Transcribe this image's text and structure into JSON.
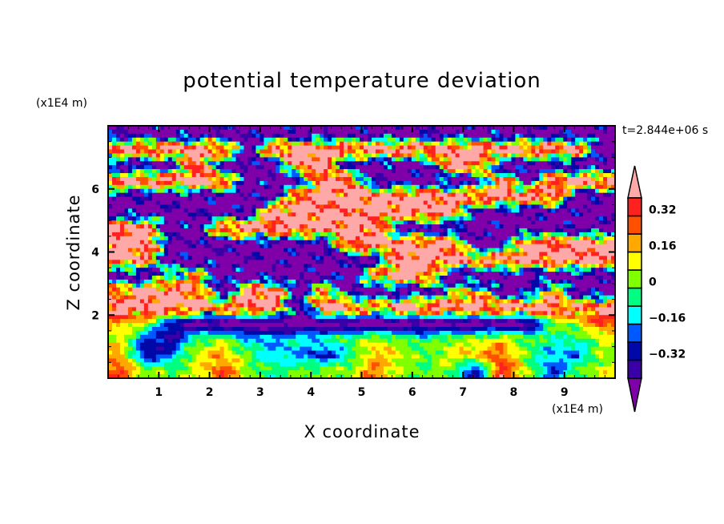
{
  "chart_data": {
    "type": "heatmap",
    "title": "potential temperature deviation",
    "xlabel": "X coordinate",
    "ylabel": "Z coordinate",
    "x_unit": "(x1E4 m)",
    "y_unit": "(x1E4 m)",
    "time_label": "t=2.844e+06 s",
    "xlim": [
      0,
      10
    ],
    "ylim": [
      0,
      8
    ],
    "xticks": [
      1,
      2,
      3,
      4,
      5,
      6,
      7,
      8,
      9
    ],
    "xtick_labels": [
      "1",
      "2",
      "3",
      "4",
      "5",
      "6",
      "7",
      "8",
      "9"
    ],
    "yticks": [
      2,
      4,
      6
    ],
    "ytick_labels": [
      "2",
      "4",
      "6"
    ],
    "colorbar": {
      "levels": [
        -0.4,
        -0.32,
        -0.24,
        -0.16,
        -0.08,
        0,
        0.08,
        0.16,
        0.24,
        0.32,
        0.4
      ],
      "tick_values": [
        0.32,
        0.16,
        0,
        -0.16,
        -0.32
      ],
      "tick_labels": [
        "0.32",
        "0.16",
        "0",
        "−0.16",
        "−0.32"
      ],
      "colors": [
        "#7f00a8",
        "#3a00a8",
        "#0008a8",
        "#0058ff",
        "#00ffff",
        "#00ff80",
        "#80ff00",
        "#ffff00",
        "#ffa800",
        "#ff5000",
        "#ff2020",
        "#ffa8a8"
      ],
      "extend": "both"
    },
    "z": [
      [
        -0.5,
        -0.5,
        -0.5,
        -0.5,
        -0.5,
        -0.5,
        -0.5,
        -0.5,
        -0.5,
        -0.5,
        -0.5,
        -0.5,
        -0.5,
        -0.5,
        -0.5,
        -0.5,
        -0.5,
        -0.5,
        -0.5,
        -0.5
      ],
      [
        0.5,
        0.5,
        0.5,
        0.5,
        0.5,
        -0.5,
        0.5,
        0.5,
        0.5,
        0.5,
        0.5,
        0.5,
        0.5,
        0.5,
        0.5,
        0.5,
        0.5,
        0.5,
        0.5,
        -0.5
      ],
      [
        -0.5,
        -0.5,
        -0.5,
        0.5,
        -0.5,
        -0.5,
        -0.5,
        0.5,
        0.5,
        -0.5,
        -0.5,
        -0.5,
        -0.5,
        0.5,
        0.5,
        -0.5,
        -0.5,
        -0.5,
        -0.5,
        -0.5
      ],
      [
        0.5,
        0.5,
        0.5,
        0.5,
        0.5,
        -0.5,
        -0.5,
        -0.5,
        0.5,
        0.5,
        -0.5,
        -0.5,
        -0.5,
        -0.5,
        -0.5,
        0.5,
        -0.5,
        0.5,
        0.5,
        0.5
      ],
      [
        -0.5,
        -0.5,
        -0.5,
        -0.5,
        -0.5,
        -0.5,
        -0.5,
        0.5,
        0.5,
        0.5,
        0.5,
        0.5,
        0.5,
        0.5,
        0.5,
        0.5,
        0.5,
        0.5,
        -0.5,
        -0.5
      ],
      [
        -0.5,
        -0.5,
        -0.5,
        -0.5,
        -0.5,
        -0.5,
        0.5,
        0.5,
        0.5,
        0.5,
        0.5,
        0.5,
        0.5,
        0.5,
        -0.5,
        -0.5,
        -0.5,
        -0.5,
        -0.5,
        -0.5
      ],
      [
        0.5,
        0.5,
        -0.5,
        -0.5,
        0.5,
        0.5,
        0.5,
        0.5,
        0.5,
        0.5,
        0.5,
        -0.5,
        -0.5,
        -0.5,
        -0.5,
        -0.5,
        -0.5,
        -0.5,
        -0.5,
        -0.5
      ],
      [
        0.5,
        0.5,
        -0.5,
        -0.5,
        -0.5,
        -0.5,
        -0.5,
        -0.5,
        -0.5,
        0.5,
        0.5,
        0.5,
        0.5,
        0.5,
        -0.5,
        -0.5,
        0.5,
        0.5,
        0.5,
        0.5
      ],
      [
        0.5,
        0.3,
        -0.5,
        -0.5,
        -0.5,
        -0.5,
        -0.5,
        -0.5,
        -0.5,
        -0.5,
        -0.5,
        0.5,
        0.5,
        0.5,
        0.35,
        0.5,
        0.5,
        0.5,
        0.5,
        0.5
      ],
      [
        -0.5,
        -0.5,
        0.0,
        0.2,
        -0.5,
        -0.5,
        -0.5,
        -0.5,
        -0.5,
        -0.5,
        0.3,
        0.5,
        0.5,
        -0.5,
        -0.5,
        -0.5,
        -0.5,
        -0.5,
        -0.5,
        -0.5
      ],
      [
        0.3,
        0.5,
        0.5,
        0.35,
        -0.5,
        0.4,
        0.5,
        -0.5,
        0.3,
        -0.5,
        -0.5,
        -0.5,
        -0.5,
        -0.1,
        0.2,
        -0.5,
        -0.5,
        0.3,
        -0.5,
        -0.5
      ],
      [
        0.5,
        0.5,
        0.5,
        0.5,
        0.3,
        0.5,
        0.5,
        -0.5,
        0.5,
        0.5,
        0.2,
        0.5,
        0.5,
        0.5,
        0.5,
        0.5,
        0.5,
        0.5,
        0.3,
        0.5
      ],
      [
        0.2,
        0.1,
        -0.3,
        -0.5,
        -0.5,
        -0.5,
        -0.5,
        -0.5,
        -0.5,
        -0.5,
        -0.5,
        -0.5,
        -0.5,
        -0.5,
        -0.5,
        -0.5,
        -0.5,
        0.0,
        0.1,
        0.3
      ],
      [
        0.1,
        -0.25,
        -0.35,
        0.0,
        0.05,
        -0.15,
        -0.15,
        -0.1,
        -0.05,
        0.0,
        0.1,
        0.0,
        -0.05,
        0.05,
        0.05,
        0.15,
        0.0,
        -0.05,
        -0.05,
        0.1
      ],
      [
        0.2,
        -0.35,
        -0.2,
        0.1,
        0.2,
        0.0,
        -0.15,
        -0.15,
        -0.3,
        -0.1,
        0.2,
        0.1,
        0.0,
        0.1,
        0.2,
        0.3,
        0.0,
        -0.15,
        -0.2,
        0.05
      ],
      [
        0.3,
        0.05,
        0.0,
        0.1,
        0.3,
        0.05,
        -0.05,
        0.0,
        0.05,
        0.05,
        0.25,
        0.05,
        0.0,
        0.05,
        -0.35,
        0.35,
        0.1,
        -0.25,
        0.0,
        0.1
      ]
    ]
  }
}
